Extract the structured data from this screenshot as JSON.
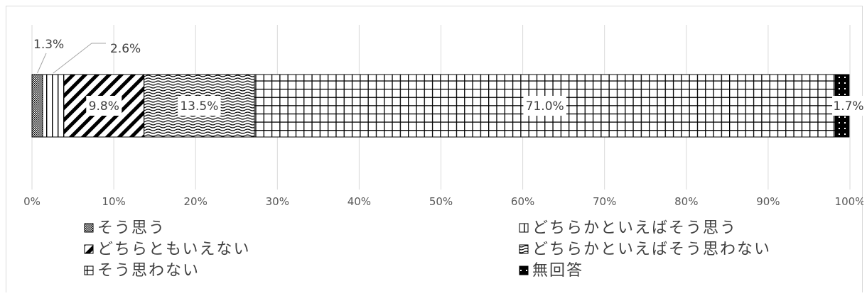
{
  "chart_data": {
    "type": "bar",
    "orientation": "horizontal-stacked-100",
    "title": "",
    "xlabel": "",
    "ylabel": "",
    "xlim": [
      0,
      100
    ],
    "ticks": [
      "0%",
      "10%",
      "20%",
      "30%",
      "40%",
      "50%",
      "60%",
      "70%",
      "80%",
      "90%",
      "100%"
    ],
    "grid": true,
    "legend_position": "bottom",
    "series": [
      {
        "name": "そう思う",
        "value": 1.3,
        "label": "1.3%",
        "pattern": "dots"
      },
      {
        "name": "どちらかといえばそう思う",
        "value": 2.6,
        "label": "2.6%",
        "pattern": "vertical"
      },
      {
        "name": "どちらともいえない",
        "value": 9.8,
        "label": "9.8%",
        "pattern": "diagonal"
      },
      {
        "name": "どちらかといえばそう思わない",
        "value": 13.5,
        "label": "13.5%",
        "pattern": "wave"
      },
      {
        "name": "そう思わない",
        "value": 71.0,
        "label": "71.0%",
        "pattern": "grid"
      },
      {
        "name": "無回答",
        "value": 1.7,
        "label": "1.7%",
        "pattern": "dark"
      }
    ]
  }
}
